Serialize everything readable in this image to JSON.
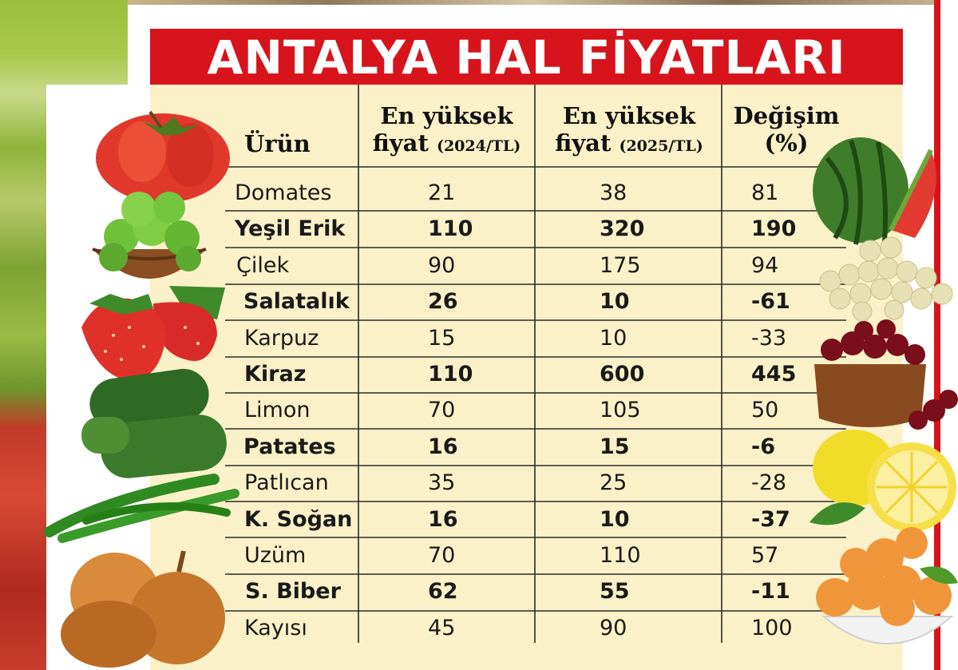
{
  "title": "ANTALYA HAL FİYATLARI",
  "headers": {
    "product": "Ürün",
    "price2024_line1": "En yüksek",
    "price2024_line2": "fiyat",
    "price2024_unit": "(2024/TL)",
    "price2025_line1": "En yüksek",
    "price2025_line2": "fiyat",
    "price2025_unit": "(2025/TL)",
    "change_line1": "Değişim",
    "change_line2": "(%)"
  },
  "chart_data": {
    "type": "table",
    "title": "ANTALYA HAL FİYATLARI",
    "columns": [
      "Ürün",
      "En yüksek fiyat (2024/TL)",
      "En yüksek fiyat (2025/TL)",
      "Değişim (%)"
    ],
    "rows": [
      {
        "product": "Domates",
        "p2024": "21",
        "p2025": "38",
        "change": "81",
        "bold": false
      },
      {
        "product": "Yeşil Erik",
        "p2024": "110",
        "p2025": "320",
        "change": "190",
        "bold": true
      },
      {
        "product": "Çilek",
        "p2024": "90",
        "p2025": "175",
        "change": "94",
        "bold": false
      },
      {
        "product": "Salatalık",
        "p2024": "26",
        "p2025": "10",
        "change": "-61",
        "bold": true
      },
      {
        "product": "Karpuz",
        "p2024": "15",
        "p2025": "10",
        "change": "-33",
        "bold": false
      },
      {
        "product": "Kiraz",
        "p2024": "110",
        "p2025": "600",
        "change": "445",
        "bold": true
      },
      {
        "product": "Limon",
        "p2024": "70",
        "p2025": "105",
        "change": "50",
        "bold": false
      },
      {
        "product": "Patates",
        "p2024": "16",
        "p2025": "15",
        "change": "-6",
        "bold": true
      },
      {
        "product": "Patlıcan",
        "p2024": "35",
        "p2025": "25",
        "change": "-28",
        "bold": false
      },
      {
        "product": "K. Soğan",
        "p2024": "16",
        "p2025": "10",
        "change": "-37",
        "bold": true
      },
      {
        "product": "Uzüm",
        "p2024": "70",
        "p2025": "110",
        "change": "57",
        "bold": false
      },
      {
        "product": "S. Biber",
        "p2024": "62",
        "p2025": "55",
        "change": "-11",
        "bold": true
      },
      {
        "product": "Kayısı",
        "p2024": "45",
        "p2025": "90",
        "change": "100",
        "bold": false
      }
    ]
  },
  "colors": {
    "title_bar": "#d7141c",
    "table_bg": "#fbf1c8",
    "text": "#1a1a1a"
  },
  "illustrations": [
    "tomato-image",
    "green-plum-bowl-image",
    "strawberry-image",
    "cucumber-image",
    "green-pepper-image",
    "onion-image",
    "watermelon-image",
    "grape-image",
    "cherry-bowl-image",
    "lemon-image",
    "apricot-bowl-image"
  ]
}
